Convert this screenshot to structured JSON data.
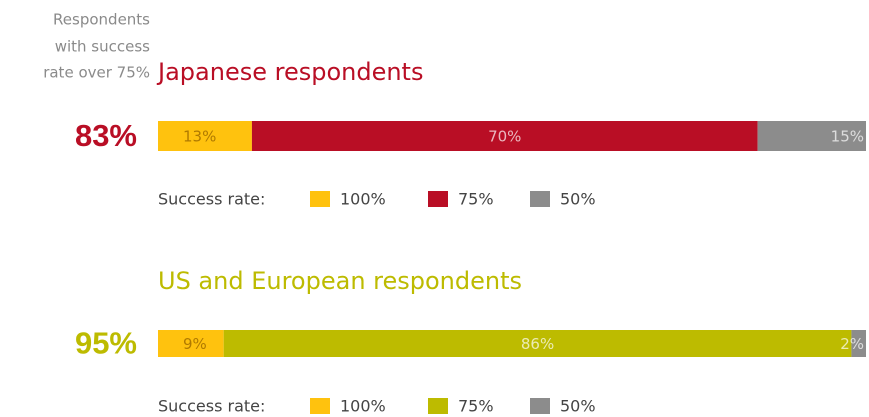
{
  "chart_data": [
    {
      "type": "bar",
      "orientation": "horizontal",
      "stacked": true,
      "annotation_lines": [
        "Respondents",
        "with success",
        "rate over 75%"
      ],
      "title": "Japanese respondents",
      "title_color": "#b90e25",
      "highlight": {
        "value": 83,
        "label": "83%"
      },
      "legend_title": "Success rate:",
      "series": [
        {
          "name": "100%",
          "color": "#ffc20e",
          "values": [
            13
          ],
          "value_labels": [
            "13%"
          ]
        },
        {
          "name": "75%",
          "color": "#b90e25",
          "values": [
            70
          ],
          "value_labels": [
            "70%"
          ]
        },
        {
          "name": "50%",
          "color": "#8c8c8c",
          "values": [
            15
          ],
          "value_labels": [
            "15%"
          ]
        }
      ]
    },
    {
      "type": "bar",
      "orientation": "horizontal",
      "stacked": true,
      "title": "US and European respondents",
      "title_color": "#bdbb00",
      "highlight": {
        "value": 95,
        "label": "95%"
      },
      "legend_title": "Success rate:",
      "series": [
        {
          "name": "100%",
          "color": "#ffc20e",
          "values": [
            9
          ],
          "value_labels": [
            "9%"
          ]
        },
        {
          "name": "75%",
          "color": "#bdbb00",
          "values": [
            86
          ],
          "value_labels": [
            "86%"
          ]
        },
        {
          "name": "50%",
          "color": "#8c8c8c",
          "values": [
            2
          ],
          "value_labels": [
            "2%"
          ]
        }
      ]
    }
  ]
}
